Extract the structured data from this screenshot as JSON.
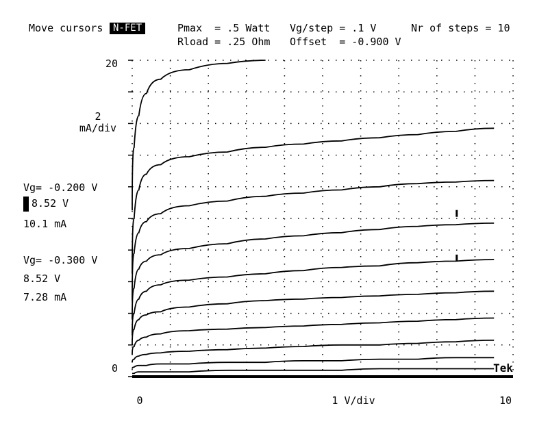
{
  "header": {
    "move_cursors": "Move cursors",
    "mode": "N-FET",
    "pmax": "Pmax  = .5 Watt",
    "rload": "Rload = .25 Ohm",
    "vg_step": "Vg/step = .1 V",
    "offset": "Offset  = -0.900 V",
    "nr_steps": "Nr of steps = 10"
  },
  "cursor1": {
    "vg": "Vg= -0.200 V",
    "v": "8.52 V",
    "i": "10.1 mA"
  },
  "cursor2": {
    "vg": "Vg= -0.300 V",
    "v": "8.52 V",
    "i": "7.28 mA"
  },
  "brand": "Tek",
  "colors": {
    "trace": "#000000",
    "grid": "#000000",
    "background": "#ffffff"
  },
  "chart_data": {
    "type": "line",
    "title": "",
    "xlabel": "1 V/div",
    "ylabel": "2 mA/div",
    "xlim": [
      0,
      10
    ],
    "ylim": [
      0,
      20
    ],
    "x_ticks": [
      "0",
      "10"
    ],
    "y_ticks": [
      "0",
      "20"
    ],
    "grid": true,
    "legend": "none",
    "x": [
      0,
      0.1,
      0.25,
      0.5,
      1,
      2,
      3,
      4,
      5,
      6,
      7,
      8,
      9,
      10
    ],
    "series": [
      {
        "values": [
          10.5,
          14.5,
          16.5,
          17.9,
          18.8,
          19.4,
          19.8,
          20,
          null,
          null,
          null,
          null,
          null,
          null
        ]
      },
      {
        "values": [
          6.5,
          10.0,
          11.8,
          12.8,
          13.4,
          13.9,
          14.2,
          14.5,
          14.7,
          14.9,
          15.1,
          15.3,
          15.5,
          15.7
        ]
      },
      {
        "values": [
          4.8,
          7.8,
          9.1,
          9.8,
          10.3,
          10.8,
          11.1,
          11.4,
          11.6,
          11.8,
          12.0,
          12.2,
          12.3,
          12.4
        ]
      },
      {
        "values": [
          3.6,
          5.6,
          6.8,
          7.3,
          7.7,
          8.1,
          8.4,
          8.7,
          8.9,
          9.1,
          9.3,
          9.5,
          9.6,
          9.7
        ]
      },
      {
        "values": [
          2.6,
          4.0,
          4.9,
          5.4,
          5.8,
          6.1,
          6.3,
          6.5,
          6.7,
          6.9,
          7.0,
          7.2,
          7.3,
          7.4
        ]
      },
      {
        "values": [
          2.0,
          3.0,
          3.6,
          3.9,
          4.1,
          4.4,
          4.6,
          4.8,
          4.9,
          5.0,
          5.1,
          5.2,
          5.3,
          5.4
        ]
      },
      {
        "values": [
          1.4,
          1.9,
          2.3,
          2.5,
          2.7,
          2.9,
          3.0,
          3.1,
          3.2,
          3.3,
          3.4,
          3.5,
          3.6,
          3.7
        ]
      },
      {
        "values": [
          0.9,
          1.1,
          1.3,
          1.4,
          1.5,
          1.6,
          1.7,
          1.8,
          1.9,
          2.0,
          2.0,
          2.1,
          2.2,
          2.3
        ]
      },
      {
        "values": [
          0.5,
          0.6,
          0.7,
          0.7,
          0.8,
          0.8,
          0.9,
          0.9,
          1.0,
          1.0,
          1.1,
          1.1,
          1.2,
          1.2
        ]
      },
      {
        "values": [
          0.2,
          0.2,
          0.3,
          0.3,
          0.3,
          0.3,
          0.4,
          0.4,
          0.4,
          0.4,
          0.5,
          0.5,
          0.5,
          0.5
        ]
      }
    ],
    "cursor_marks": [
      {
        "x": 8.52,
        "y": 10.1
      },
      {
        "x": 8.52,
        "y": 7.28
      }
    ]
  }
}
